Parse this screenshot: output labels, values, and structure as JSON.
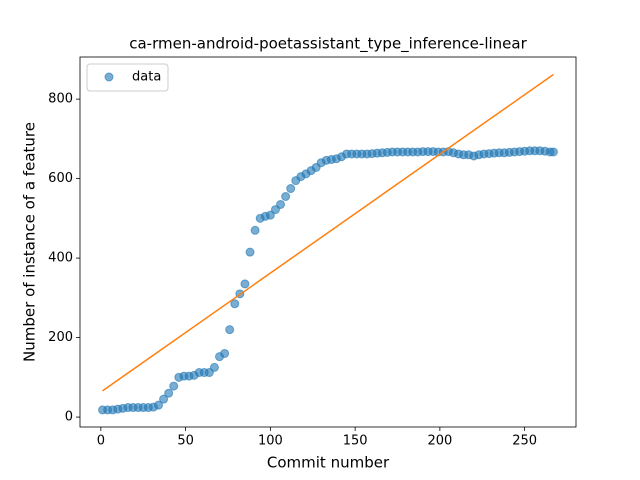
{
  "chart_data": {
    "type": "scatter",
    "title": "ca-rmen-android-poetassistant_type_inference-linear",
    "xlabel": "Commit number",
    "ylabel": "Number of instance of a feature",
    "xlim": [
      -12.3,
      280.3
    ],
    "ylim": [
      -25,
      906
    ],
    "xticks": [
      0,
      50,
      100,
      150,
      200,
      250
    ],
    "yticks": [
      0,
      200,
      400,
      600,
      800
    ],
    "legend": "upper left",
    "series": [
      {
        "name": "data",
        "color": "#1f77b4",
        "opacity": 0.6,
        "x": [
          1,
          4,
          7,
          10,
          13,
          16,
          19,
          22,
          25,
          28,
          31,
          34,
          37,
          40,
          43,
          46,
          49,
          52,
          55,
          58,
          61,
          64,
          67,
          70,
          73,
          76,
          79,
          82,
          85,
          88,
          91,
          94,
          97,
          100,
          103,
          106,
          109,
          112,
          115,
          118,
          121,
          124,
          127,
          130,
          133,
          136,
          139,
          142,
          145,
          148,
          151,
          154,
          157,
          160,
          163,
          166,
          169,
          172,
          175,
          178,
          181,
          184,
          187,
          190,
          193,
          196,
          199,
          202,
          205,
          208,
          211,
          214,
          217,
          220,
          223,
          226,
          229,
          232,
          235,
          238,
          241,
          244,
          247,
          250,
          253,
          256,
          259,
          262,
          265,
          267
        ],
        "values": [
          18,
          18,
          18,
          20,
          22,
          24,
          24,
          24,
          24,
          24,
          25,
          30,
          45,
          60,
          78,
          100,
          103,
          103,
          105,
          112,
          112,
          112,
          125,
          152,
          160,
          220,
          285,
          310,
          335,
          415,
          470,
          500,
          505,
          508,
          522,
          535,
          555,
          575,
          595,
          605,
          612,
          620,
          628,
          640,
          646,
          648,
          650,
          655,
          662,
          662,
          662,
          662,
          662,
          663,
          664,
          665,
          666,
          667,
          667,
          667,
          667,
          667,
          667,
          668,
          668,
          668,
          667,
          667,
          668,
          665,
          662,
          660,
          660,
          657,
          660,
          662,
          663,
          664,
          665,
          665,
          666,
          667,
          668,
          669,
          670,
          670,
          670,
          669,
          667,
          667
        ]
      },
      {
        "type": "line",
        "color": "#ff7f0e",
        "x": [
          1,
          267
        ],
        "values": [
          66,
          862
        ]
      }
    ]
  }
}
